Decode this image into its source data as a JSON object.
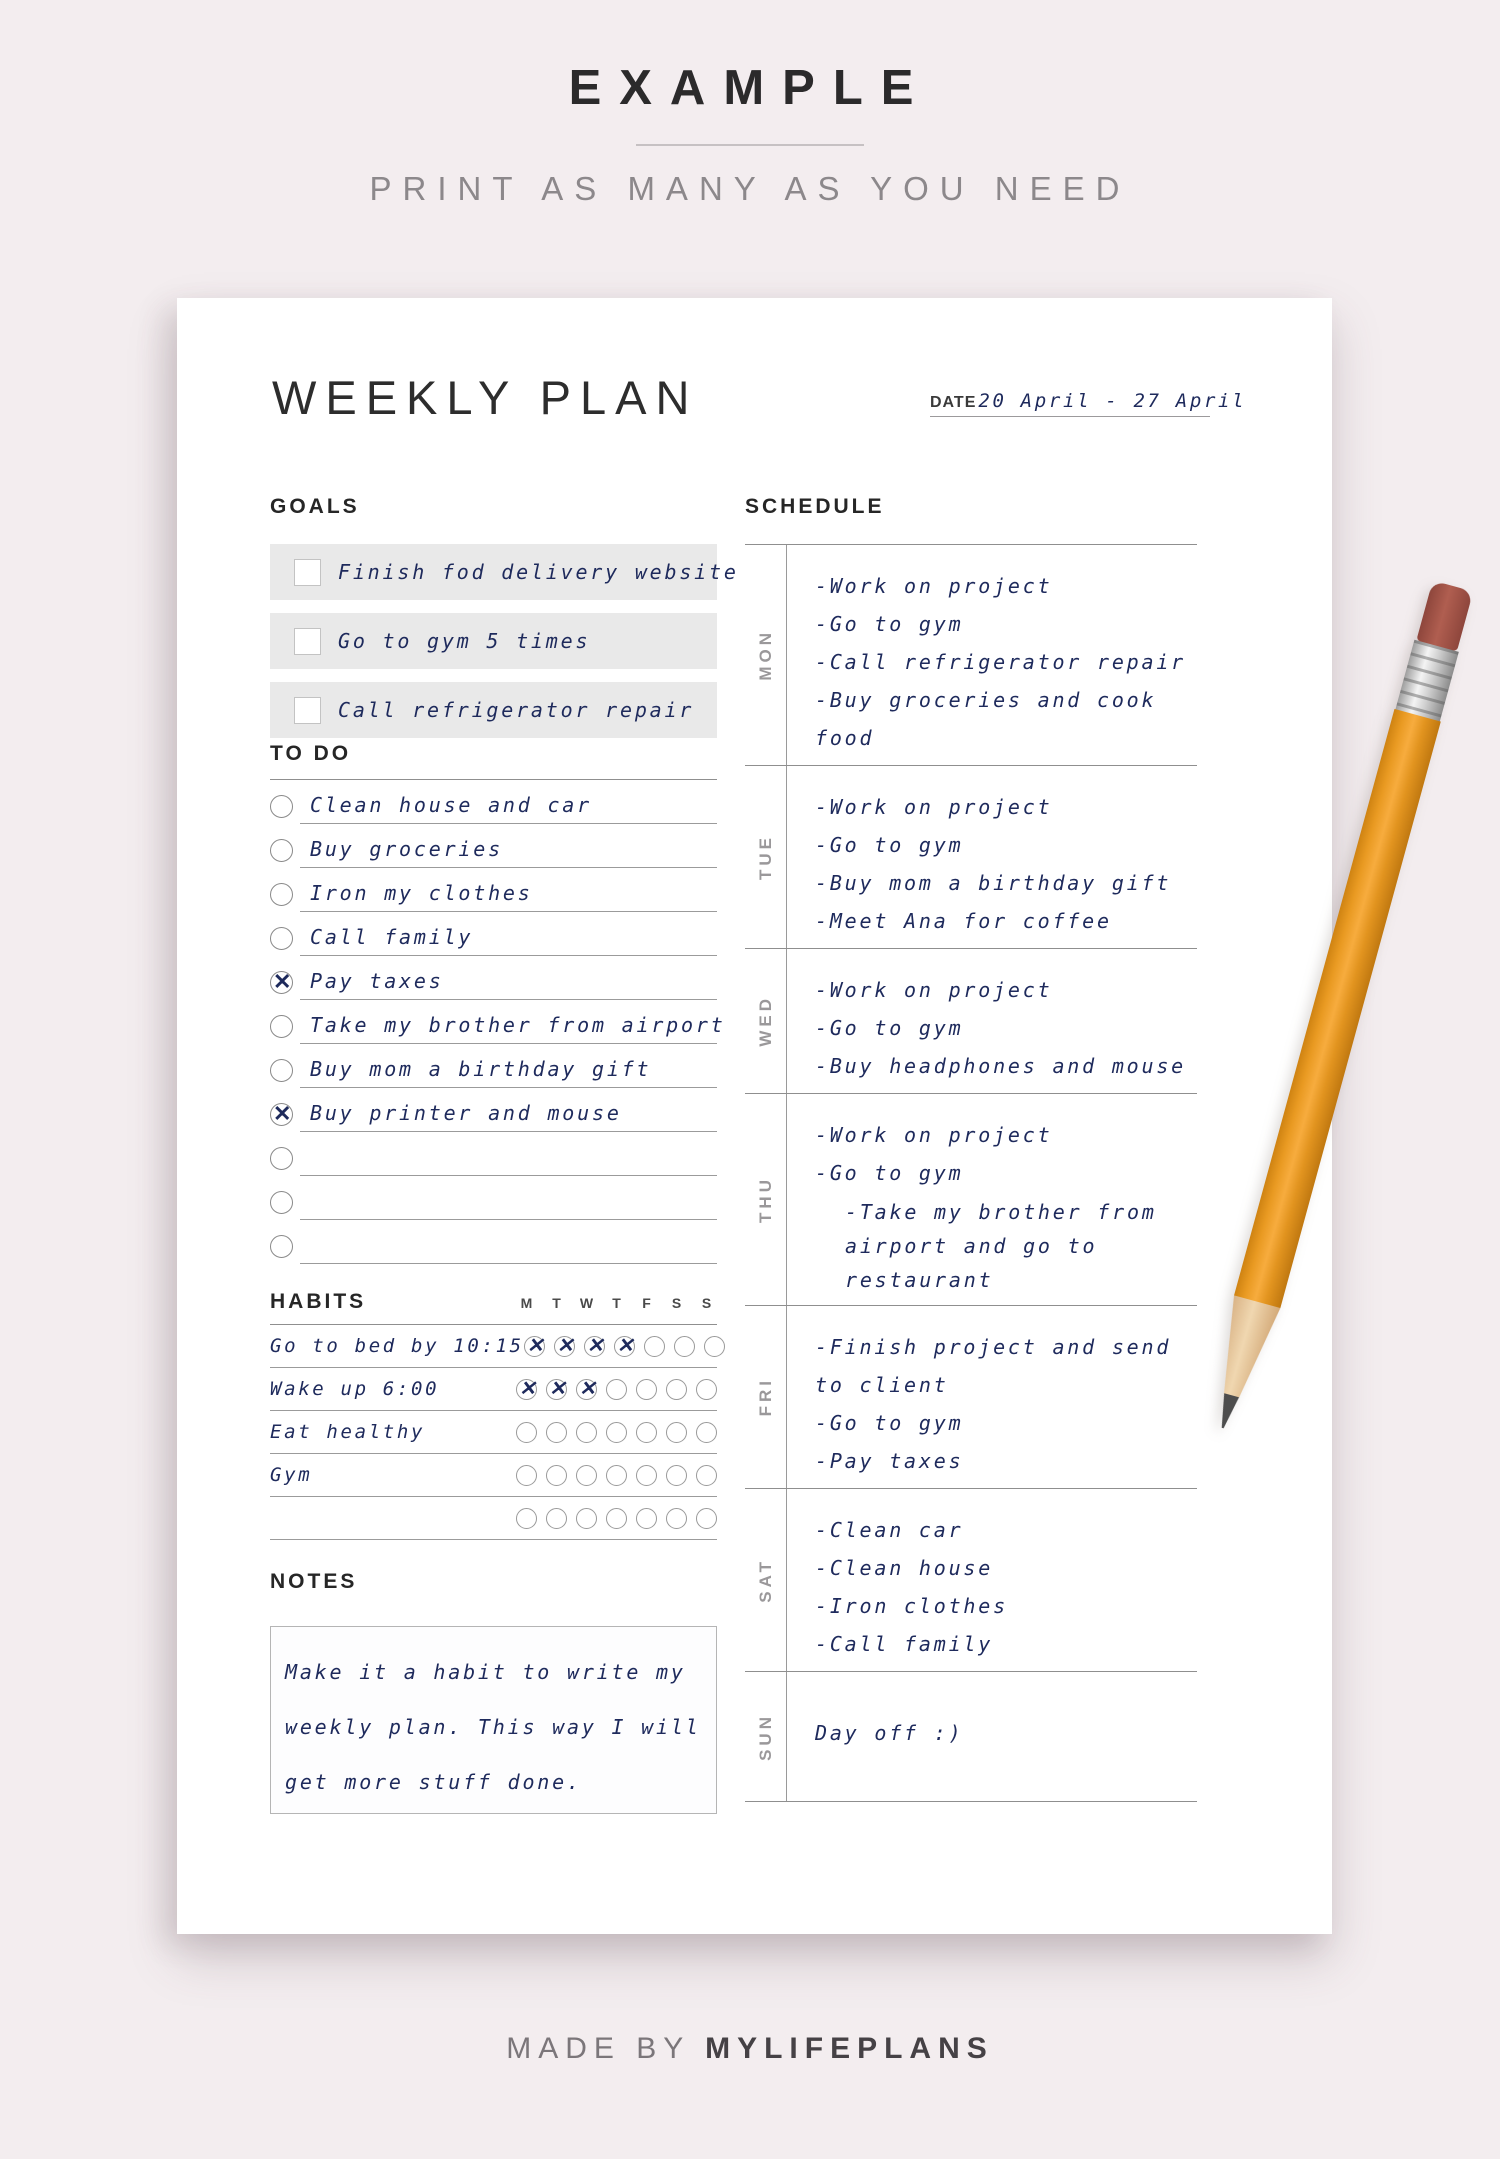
{
  "banner": {
    "title": "EXAMPLE",
    "subtitle": "PRINT AS MANY AS YOU NEED"
  },
  "page": {
    "title": "WEEKLY PLAN",
    "date_label": "DATE",
    "date_value": "20 April - 27 April"
  },
  "goals": {
    "heading": "GOALS",
    "items": [
      {
        "text": "Finish fod delivery website",
        "checked": false
      },
      {
        "text": "Go to gym 5 times",
        "checked": false
      },
      {
        "text": "Call refrigerator repair",
        "checked": false
      }
    ]
  },
  "todo": {
    "heading": "TO DO",
    "items": [
      {
        "text": "Clean house and car",
        "checked": false
      },
      {
        "text": "Buy groceries",
        "checked": false
      },
      {
        "text": "Iron my clothes",
        "checked": false
      },
      {
        "text": "Call family",
        "checked": false
      },
      {
        "text": "Pay taxes",
        "checked": true
      },
      {
        "text": "Take my brother from airport",
        "checked": false
      },
      {
        "text": "Buy mom a birthday gift",
        "checked": false
      },
      {
        "text": "Buy printer and mouse",
        "checked": true
      },
      {
        "text": "",
        "checked": false
      },
      {
        "text": "",
        "checked": false
      },
      {
        "text": "",
        "checked": false
      }
    ]
  },
  "habits": {
    "heading": "HABITS",
    "day_headers": [
      "M",
      "T",
      "W",
      "T",
      "F",
      "S",
      "S"
    ],
    "rows": [
      {
        "name": "Go to bed by 10:15",
        "checks": [
          1,
          1,
          1,
          1,
          0,
          0,
          0
        ]
      },
      {
        "name": "Wake up 6:00",
        "checks": [
          1,
          1,
          1,
          0,
          0,
          0,
          0
        ]
      },
      {
        "name": "Eat healthy",
        "checks": [
          0,
          0,
          0,
          0,
          0,
          0,
          0
        ]
      },
      {
        "name": "Gym",
        "checks": [
          0,
          0,
          0,
          0,
          0,
          0,
          0
        ]
      },
      {
        "name": "",
        "checks": [
          0,
          0,
          0,
          0,
          0,
          0,
          0
        ]
      }
    ]
  },
  "notes": {
    "heading": "NOTES",
    "text": "Make it a habit to write my weekly plan. This way I will get more stuff done."
  },
  "schedule": {
    "heading": "SCHEDULE",
    "days": [
      {
        "label": "MON",
        "items": [
          {
            "text": "-Work on project"
          },
          {
            "text": "-Go to gym"
          },
          {
            "text": "-Call refrigerator repair"
          },
          {
            "text": "-Buy groceries and cook food"
          }
        ]
      },
      {
        "label": "TUE",
        "items": [
          {
            "text": "-Work on project"
          },
          {
            "text": "-Go to gym"
          },
          {
            "text": "-Buy mom a birthday gift"
          },
          {
            "text": "-Meet Ana for coffee"
          }
        ]
      },
      {
        "label": "WED",
        "items": [
          {
            "text": "-Work on project"
          },
          {
            "text": "-Go to gym"
          },
          {
            "text": "-Buy headphones and mouse"
          }
        ]
      },
      {
        "label": "THU",
        "items": [
          {
            "text": "-Work on project"
          },
          {
            "text": "-Go to gym"
          },
          {
            "text": "-Take my brother from airport and go to restaurant",
            "indent": true
          }
        ]
      },
      {
        "label": "FRI",
        "items": [
          {
            "text": "-Finish project and send to client"
          },
          {
            "text": "-Go to gym"
          },
          {
            "text": "-Pay taxes"
          }
        ]
      },
      {
        "label": "SAT",
        "items": [
          {
            "text": "-Clean car"
          },
          {
            "text": "-Clean house"
          },
          {
            "text": "-Iron clothes"
          },
          {
            "text": "-Call family"
          }
        ]
      },
      {
        "label": "SUN",
        "center": true,
        "items": [
          {
            "text": "Day off :)"
          }
        ]
      }
    ]
  },
  "footer": {
    "made_by": "MADE BY",
    "brand": "MYLIFEPLANS"
  },
  "colors": {
    "background": "#f3edef",
    "paper": "#ffffff",
    "handwriting_ink": "#1e2a5c",
    "goal_box": "#e9e9e9",
    "pencil_body": "#e99a22",
    "pencil_eraser": "#a15449"
  }
}
